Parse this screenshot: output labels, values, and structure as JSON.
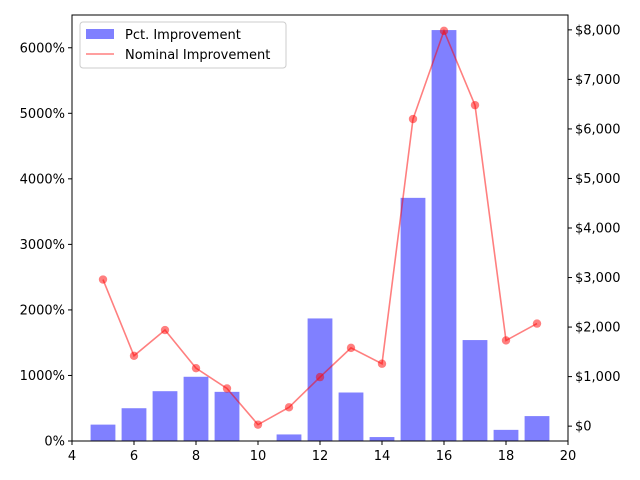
{
  "chart_data": {
    "type": "bar+line",
    "x_axis": {
      "range": [
        4,
        20
      ],
      "ticks": [
        4,
        6,
        8,
        10,
        12,
        14,
        16,
        18,
        20
      ],
      "tick_labels": [
        "4",
        "6",
        "8",
        "10",
        "12",
        "14",
        "16",
        "18",
        "20"
      ]
    },
    "y_left": {
      "range": [
        0,
        6500
      ],
      "ticks": [
        0,
        1000,
        2000,
        3000,
        4000,
        5000,
        6000
      ],
      "tick_labels": [
        "0%",
        "1000%",
        "2000%",
        "3000%",
        "4000%",
        "5000%",
        "6000%"
      ]
    },
    "y_right": {
      "range": [
        -300,
        8300
      ],
      "ticks": [
        0,
        1000,
        2000,
        3000,
        4000,
        5000,
        6000,
        7000,
        8000
      ],
      "tick_labels": [
        "$0",
        "$1,000",
        "$2,000",
        "$3,000",
        "$4,000",
        "$5,000",
        "$6,000",
        "$7,000",
        "$8,000"
      ]
    },
    "series": [
      {
        "name": "Pct. Improvement",
        "kind": "bar",
        "axis": "left",
        "color": "#8080ff",
        "x": [
          5,
          6,
          7,
          8,
          9,
          11,
          12,
          13,
          14,
          15,
          16,
          17,
          18,
          19
        ],
        "values": [
          250,
          500,
          760,
          980,
          750,
          100,
          1870,
          740,
          60,
          3710,
          6270,
          1540,
          170,
          380
        ]
      },
      {
        "name": "Nominal Improvement",
        "kind": "line",
        "axis": "right",
        "color": "#ff0000",
        "x": [
          5,
          6,
          7,
          8,
          9,
          10,
          11,
          12,
          13,
          14,
          15,
          16,
          17,
          18,
          19
        ],
        "values": [
          2960,
          1420,
          1940,
          1170,
          760,
          30,
          380,
          990,
          1580,
          1260,
          6200,
          7980,
          6480,
          1730,
          2070
        ]
      }
    ],
    "legend": {
      "position": "top-left",
      "entries": [
        "Pct. Improvement",
        "Nominal Improvement"
      ]
    },
    "grid": false
  }
}
